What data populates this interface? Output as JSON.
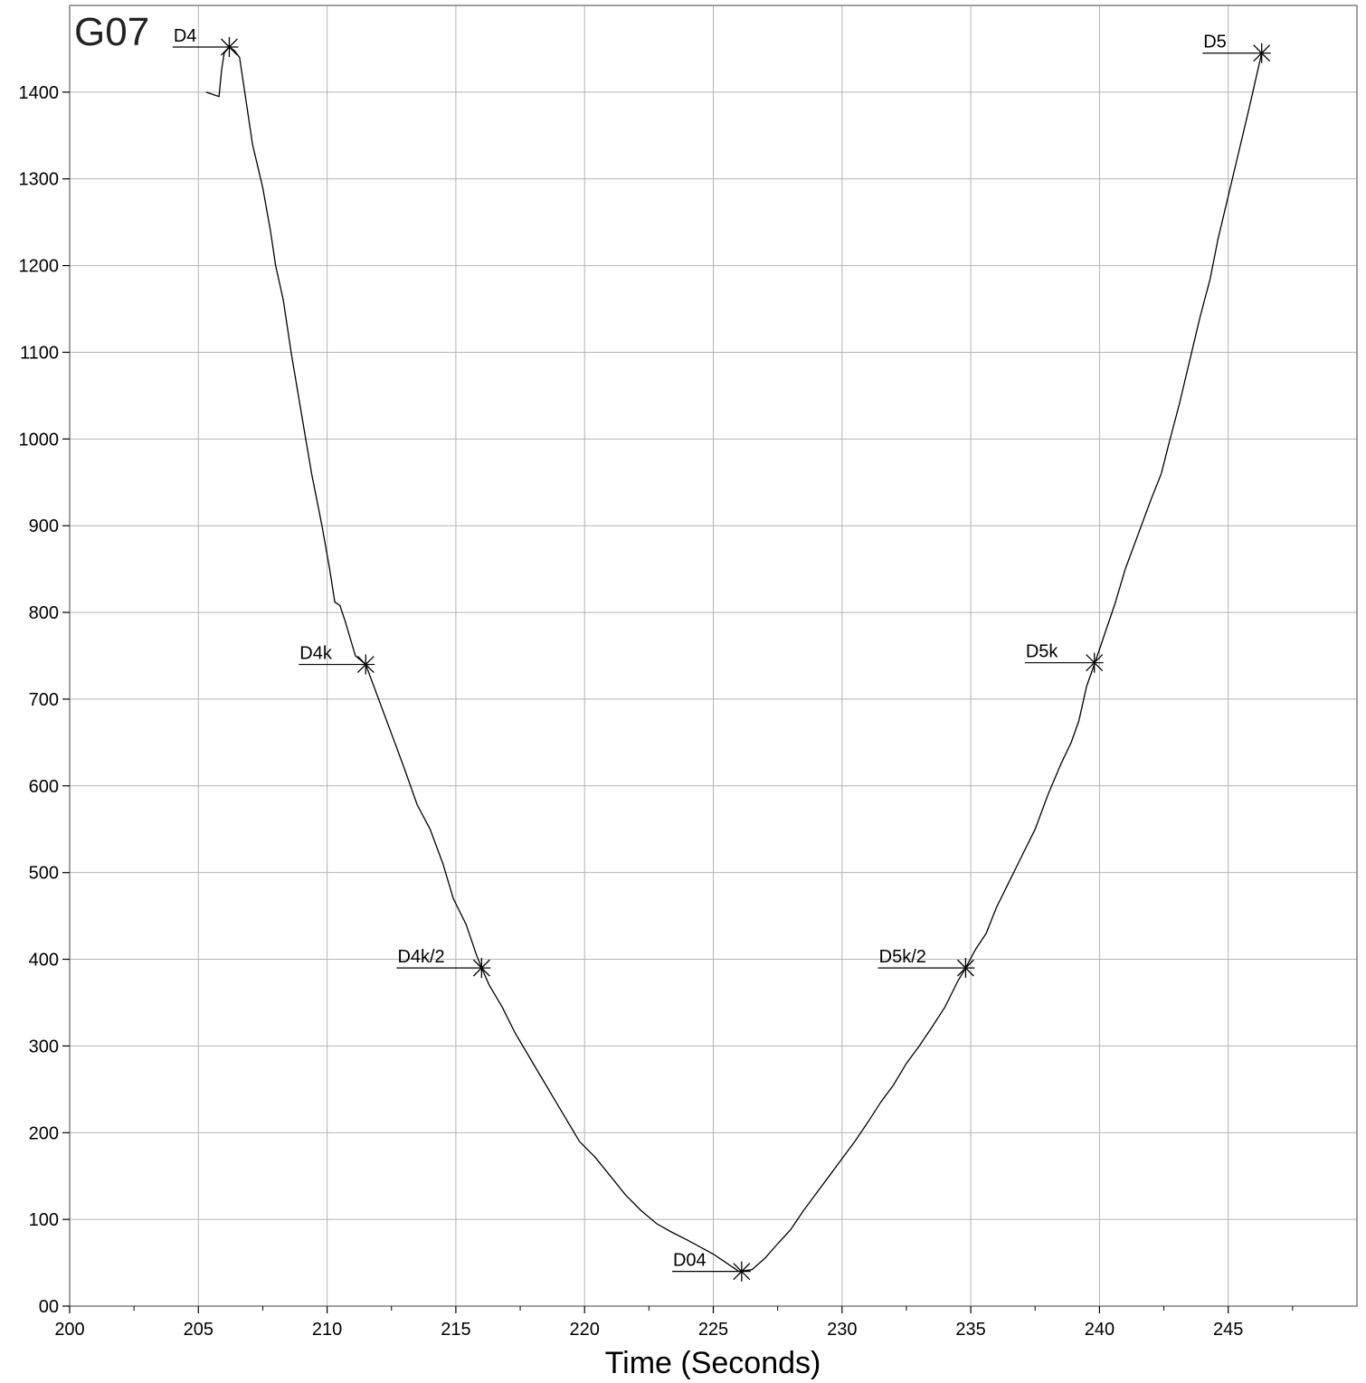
{
  "chart_data": {
    "type": "line",
    "title": "G07",
    "xlabel": "Time (Seconds)",
    "ylabel": "",
    "xlim": [
      200,
      250
    ],
    "ylim": [
      0,
      1500
    ],
    "grid": true,
    "x_ticks": [
      200,
      205,
      210,
      215,
      220,
      225,
      230,
      235,
      240,
      245
    ],
    "y_ticks": [
      0,
      100,
      200,
      300,
      400,
      500,
      600,
      700,
      800,
      900,
      1000,
      1100,
      1200,
      1300,
      1400
    ],
    "x_tick_labels": [
      "200",
      "205",
      "210",
      "215",
      "220",
      "225",
      "230",
      "235",
      "240",
      "245"
    ],
    "y_tick_labels": [
      "00",
      "100",
      "200",
      "300",
      "400",
      "500",
      "600",
      "700",
      "800",
      "900",
      "1000",
      "1100",
      "1200",
      "1300",
      "1400"
    ],
    "series": [
      {
        "color": "#000000",
        "points": [
          [
            205.3,
            1400
          ],
          [
            205.8,
            1395
          ],
          [
            205.9,
            1425
          ],
          [
            206.0,
            1445
          ],
          [
            206.2,
            1452
          ],
          [
            206.4,
            1448
          ],
          [
            206.6,
            1440
          ],
          [
            206.7,
            1420
          ],
          [
            206.9,
            1380
          ],
          [
            207.1,
            1340
          ],
          [
            207.5,
            1290
          ],
          [
            207.8,
            1240
          ],
          [
            208.0,
            1200
          ],
          [
            208.3,
            1160
          ],
          [
            208.6,
            1100
          ],
          [
            209.0,
            1030
          ],
          [
            209.4,
            960
          ],
          [
            209.8,
            900
          ],
          [
            210.1,
            850
          ],
          [
            210.3,
            812
          ],
          [
            210.5,
            808
          ],
          [
            210.7,
            790
          ],
          [
            211.1,
            750
          ],
          [
            211.5,
            740
          ],
          [
            212.0,
            700
          ],
          [
            212.5,
            660
          ],
          [
            213.0,
            620
          ],
          [
            213.5,
            578
          ],
          [
            214.0,
            550
          ],
          [
            214.5,
            510
          ],
          [
            214.9,
            470
          ],
          [
            215.4,
            440
          ],
          [
            215.8,
            405
          ],
          [
            216.0,
            390
          ],
          [
            216.3,
            370
          ],
          [
            216.8,
            345
          ],
          [
            217.3,
            315
          ],
          [
            217.8,
            290
          ],
          [
            218.3,
            265
          ],
          [
            218.8,
            240
          ],
          [
            219.3,
            215
          ],
          [
            219.8,
            190
          ],
          [
            220.4,
            172
          ],
          [
            221.0,
            150
          ],
          [
            221.6,
            128
          ],
          [
            222.2,
            110
          ],
          [
            222.8,
            95
          ],
          [
            223.4,
            85
          ],
          [
            224.0,
            76
          ],
          [
            224.5,
            68
          ],
          [
            225.0,
            60
          ],
          [
            225.5,
            50
          ],
          [
            226.0,
            40
          ],
          [
            226.5,
            42
          ],
          [
            227.0,
            55
          ],
          [
            227.5,
            72
          ],
          [
            228.0,
            88
          ],
          [
            228.5,
            110
          ],
          [
            229.0,
            130
          ],
          [
            229.5,
            150
          ],
          [
            230.0,
            170
          ],
          [
            230.5,
            190
          ],
          [
            231.0,
            212
          ],
          [
            231.5,
            235
          ],
          [
            232.0,
            255
          ],
          [
            232.5,
            280
          ],
          [
            233.0,
            300
          ],
          [
            233.5,
            322
          ],
          [
            234.0,
            345
          ],
          [
            234.5,
            375
          ],
          [
            234.8,
            390
          ],
          [
            235.2,
            412
          ],
          [
            235.6,
            430
          ],
          [
            236.0,
            460
          ],
          [
            236.5,
            490
          ],
          [
            237.0,
            520
          ],
          [
            237.5,
            550
          ],
          [
            238.0,
            590
          ],
          [
            238.5,
            625
          ],
          [
            238.9,
            650
          ],
          [
            239.2,
            675
          ],
          [
            239.5,
            715
          ],
          [
            239.8,
            740
          ],
          [
            240.2,
            775
          ],
          [
            240.6,
            810
          ],
          [
            241.0,
            850
          ],
          [
            241.5,
            890
          ],
          [
            242.0,
            930
          ],
          [
            242.4,
            960
          ],
          [
            242.7,
            995
          ],
          [
            243.1,
            1040
          ],
          [
            243.5,
            1090
          ],
          [
            243.9,
            1140
          ],
          [
            244.3,
            1185
          ],
          [
            244.6,
            1230
          ],
          [
            245.0,
            1280
          ],
          [
            245.4,
            1330
          ],
          [
            245.8,
            1380
          ],
          [
            246.3,
            1445
          ]
        ]
      }
    ],
    "annotations": [
      {
        "label": "D4",
        "x": 206.2,
        "y": 1452,
        "label_x": 204.0
      },
      {
        "label": "D4k",
        "x": 211.5,
        "y": 740,
        "label_x": 208.9
      },
      {
        "label": "D4k/2",
        "x": 216.0,
        "y": 390,
        "label_x": 212.7
      },
      {
        "label": "D04",
        "x": 226.1,
        "y": 40,
        "label_x": 223.4
      },
      {
        "label": "D5k/2",
        "x": 234.8,
        "y": 390,
        "label_x": 231.4
      },
      {
        "label": "D5k",
        "x": 239.8,
        "y": 742,
        "label_x": 237.1
      },
      {
        "label": "D5",
        "x": 246.3,
        "y": 1445,
        "label_x": 244.0
      }
    ]
  }
}
